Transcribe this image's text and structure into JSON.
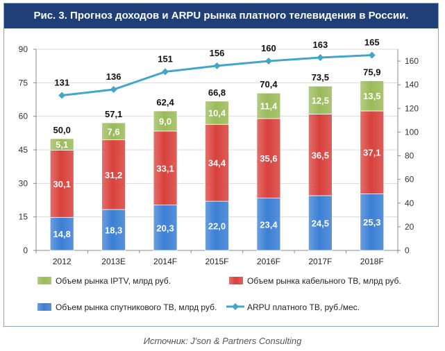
{
  "header": {
    "title": "Рис. 3. Прогноз доходов и ARPU рынка платного телевидения в России."
  },
  "source": "Источник: J'son & Partners Consulting",
  "colors": {
    "title_bg": "#1f3f78",
    "iptv": "#9bbb59",
    "cable": "#d9413c",
    "satellite": "#3b7fd4",
    "arpu": "#41a6c9"
  },
  "chart_data": {
    "type": "bar",
    "stacked": true,
    "categories": [
      "2012",
      "2013E",
      "2014F",
      "2015F",
      "2016F",
      "2017F",
      "2018F"
    ],
    "series": [
      {
        "name": "Объем рынка спутникового ТВ, млрд руб.",
        "values": [
          14.8,
          18.3,
          20.3,
          22.0,
          23.4,
          24.5,
          25.3
        ],
        "labels": [
          "14,8",
          "18,3",
          "20,3",
          "22,0",
          "23,4",
          "24,5",
          "25,3"
        ]
      },
      {
        "name": "Объем рынка кабельного ТВ, млрд руб.",
        "values": [
          30.1,
          31.2,
          33.1,
          34.4,
          35.6,
          36.5,
          37.1
        ],
        "labels": [
          "30,1",
          "31,2",
          "33,1",
          "34,4",
          "35,6",
          "36,5",
          "37,1"
        ]
      },
      {
        "name": "Объем рынка IPTV, млрд руб.",
        "values": [
          5.1,
          7.6,
          9.0,
          10.4,
          11.4,
          12.5,
          13.5
        ],
        "labels": [
          "5,1",
          "7,6",
          "9,0",
          "10,4",
          "11,4",
          "12,5",
          "13,5"
        ]
      }
    ],
    "totals": [
      50.0,
      57.1,
      62.4,
      66.8,
      70.4,
      73.5,
      75.9
    ],
    "total_labels": [
      "50,0",
      "57,1",
      "62,4",
      "66,8",
      "70,4",
      "73,5",
      "75,9"
    ],
    "line_series": {
      "name": "ARPU платного ТВ, руб./мес.",
      "axis": "right",
      "values": [
        131,
        136,
        151,
        156,
        160,
        163,
        165
      ],
      "labels": [
        "131",
        "136",
        "151",
        "156",
        "160",
        "163",
        "165"
      ]
    },
    "ylim_left": [
      0,
      90
    ],
    "yticks_left": [
      "0",
      "15",
      "30",
      "45",
      "60",
      "75",
      "90"
    ],
    "ylim_right": [
      0,
      170
    ],
    "yticks_right": [
      "0",
      "20",
      "40",
      "60",
      "80",
      "100",
      "120",
      "140",
      "160"
    ],
    "legend": {
      "position": "bottom",
      "items": [
        {
          "label": "Объем рынка IPTV, млрд руб.",
          "kind": "bar",
          "series": 2
        },
        {
          "label": "Объем рынка кабельного ТВ, млрд руб.",
          "kind": "bar",
          "series": 1
        },
        {
          "label": "Объем рынка спутникового ТВ, млрд руб.",
          "kind": "bar",
          "series": 0
        },
        {
          "label": "ARPU платного ТВ, руб./мес.",
          "kind": "line"
        }
      ]
    }
  }
}
